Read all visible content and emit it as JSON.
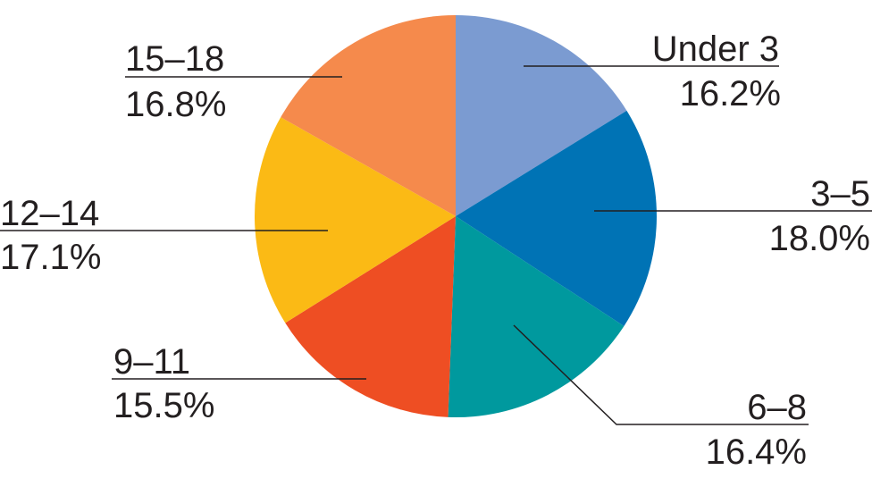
{
  "chart_data": {
    "type": "pie",
    "title": "",
    "start_angle_deg": 0,
    "direction": "clockwise",
    "slices": [
      {
        "label": "Under 3",
        "value": 16.2,
        "display": "16.2%",
        "color": "#7b9bd1"
      },
      {
        "label": "3–5",
        "value": 18.0,
        "display": "18.0%",
        "color": "#0073b5"
      },
      {
        "label": "6–8",
        "value": 16.4,
        "display": "16.4%",
        "color": "#00999e"
      },
      {
        "label": "9–11",
        "value": 15.5,
        "display": "15.5%",
        "color": "#ee4e23"
      },
      {
        "label": "12–14",
        "value": 17.1,
        "display": "17.1%",
        "color": "#fbba15"
      },
      {
        "label": "15–18",
        "value": 16.8,
        "display": "16.8%",
        "color": "#f58a4c"
      }
    ]
  }
}
